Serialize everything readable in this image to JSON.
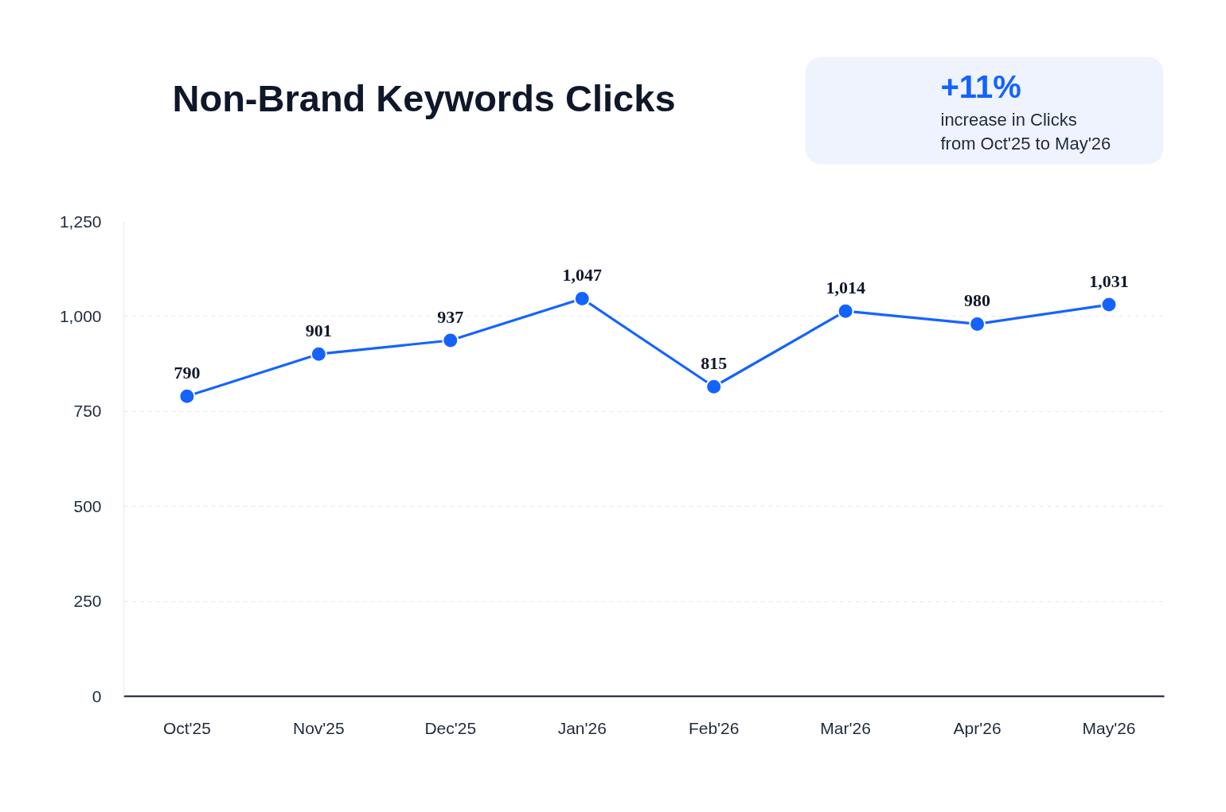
{
  "chart_data": {
    "type": "line",
    "title": "Non-Brand Keywords Clicks",
    "annotations": [
      "+11%",
      "increase in Clicks from Oct'25 to May'26"
    ],
    "categories": [
      "Oct'25",
      "Nov'25",
      "Dec'25",
      "Jan'26",
      "Feb'26",
      "Mar'26",
      "Apr'26",
      "May'26"
    ],
    "series": [
      {
        "color": "#1463ff",
        "values": [
          790,
          901,
          937,
          1047,
          815,
          1014,
          980,
          1031
        ],
        "value_labels": [
          "790",
          "901",
          "937",
          "1,047",
          "815",
          "1,014",
          "980",
          "1,031"
        ]
      }
    ],
    "ylim": [
      0,
      1250
    ],
    "yticks": [
      0,
      250,
      500,
      750,
      {
        "value": 1000,
        "label": "1,000"
      },
      {
        "value": 1250,
        "label": "1,250"
      }
    ],
    "grid": "y",
    "marker": "circle",
    "line_style": "solid"
  }
}
